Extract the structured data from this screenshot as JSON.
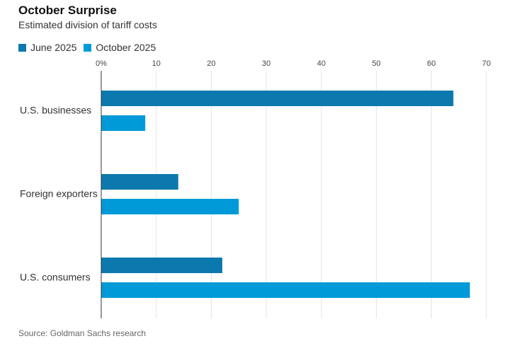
{
  "chart_data": {
    "type": "bar",
    "orientation": "horizontal",
    "title": "October Surprise",
    "subtitle": "Estimated division of tariff costs",
    "categories": [
      "U.S. businesses",
      "Foreign exporters",
      "U.S. consumers"
    ],
    "series": [
      {
        "name": "June 2025",
        "color": "#0b79ad",
        "values": [
          64,
          14,
          22
        ]
      },
      {
        "name": "October 2025",
        "color": "#009ad8",
        "values": [
          8,
          25,
          67
        ]
      }
    ],
    "x_ticks": [
      "0%",
      "10",
      "20",
      "30",
      "40",
      "50",
      "60",
      "70"
    ],
    "xlim": [
      0,
      70
    ],
    "grid": true,
    "legend_position": "top-left",
    "source": "Source: Goldman Sachs research"
  }
}
